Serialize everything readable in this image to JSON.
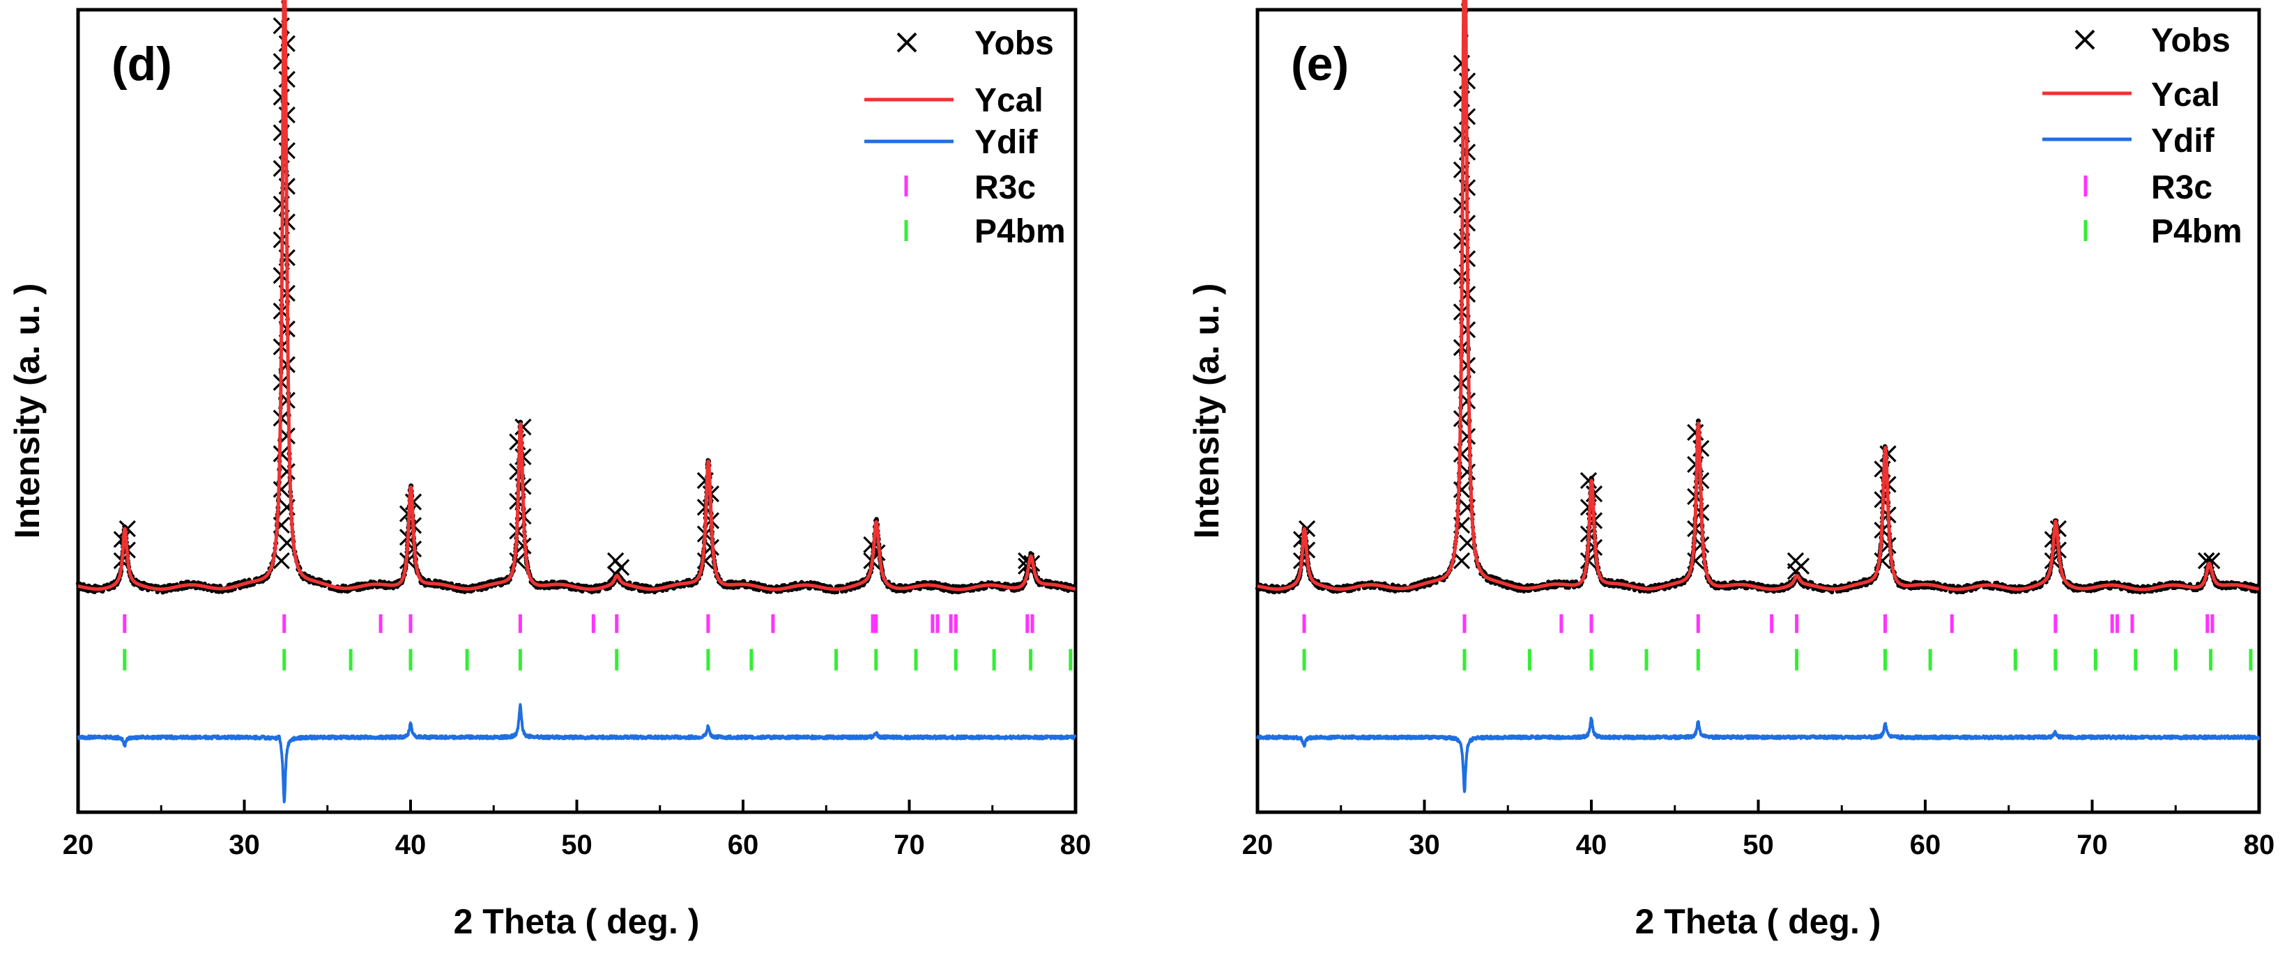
{
  "colors": {
    "yobs": "#000000",
    "ycal": "#ee3333",
    "ydif": "#1f6fe0",
    "r3c": "#ff33ff",
    "p4bm": "#33ee33"
  },
  "chart_data": [
    {
      "type": "line",
      "panel_label": "(d)",
      "xlabel": "2 Theta ( deg. )",
      "ylabel": "Intensity (a. u. )",
      "xlim": [
        20,
        80
      ],
      "ylim": [
        -0.4,
        1.1
      ],
      "xticks": [
        "20",
        "30",
        "40",
        "50",
        "60",
        "70",
        "80"
      ],
      "grid": false,
      "legend_position": "top-right",
      "legend": [
        "Yobs",
        "Ycal",
        "Ydif",
        "R3c",
        "P4bm"
      ],
      "baseline": 0.02,
      "peaks": [
        {
          "x": 22.8,
          "h": 0.09,
          "w": 0.14
        },
        {
          "x": 32.4,
          "h": 1.0,
          "w": 0.14
        },
        {
          "x": 40.0,
          "h": 0.16,
          "w": 0.16
        },
        {
          "x": 46.6,
          "h": 0.26,
          "w": 0.15
        },
        {
          "x": 52.4,
          "h": 0.015,
          "w": 0.18
        },
        {
          "x": 57.9,
          "h": 0.2,
          "w": 0.17
        },
        {
          "x": 68.0,
          "h": 0.1,
          "w": 0.18
        },
        {
          "x": 77.3,
          "h": 0.05,
          "w": 0.2
        }
      ],
      "obs_top": [
        {
          "x": 22.8,
          "y": 0.13
        },
        {
          "x": 32.4,
          "y": 1.07
        },
        {
          "x": 40.0,
          "y": 0.18
        },
        {
          "x": 46.6,
          "y": 0.32
        },
        {
          "x": 52.5,
          "y": 0.045
        },
        {
          "x": 57.9,
          "y": 0.22
        },
        {
          "x": 67.9,
          "y": 0.1
        },
        {
          "x": 77.2,
          "y": 0.06
        }
      ],
      "r3c_ticks": [
        22.8,
        32.4,
        38.2,
        40.0,
        46.6,
        51.0,
        52.4,
        57.9,
        61.8,
        67.8,
        68.0,
        71.4,
        71.7,
        72.5,
        72.8,
        77.1,
        77.4
      ],
      "p4bm_ticks": [
        22.8,
        32.4,
        36.4,
        40.0,
        43.4,
        46.6,
        52.4,
        57.9,
        60.5,
        65.6,
        68.0,
        70.4,
        72.8,
        75.1,
        77.3,
        79.7
      ],
      "ydif_spikes": [
        {
          "x": 22.8,
          "d": -0.015
        },
        {
          "x": 32.4,
          "d": -0.12
        },
        {
          "x": 32.1,
          "d": 0.01
        },
        {
          "x": 40.0,
          "d": 0.025
        },
        {
          "x": 46.6,
          "d": 0.06
        },
        {
          "x": 57.9,
          "d": 0.02
        },
        {
          "x": 68.0,
          "d": 0.008
        }
      ],
      "ydif_level": -0.26
    },
    {
      "type": "line",
      "panel_label": "(e)",
      "xlabel": "2 Theta ( deg. )",
      "ylabel": "Intensity (a. u. )",
      "xlim": [
        20,
        80
      ],
      "ylim": [
        -0.4,
        1.1
      ],
      "xticks": [
        "20",
        "30",
        "40",
        "50",
        "60",
        "70",
        "80"
      ],
      "grid": false,
      "legend_position": "top-right",
      "legend": [
        "Yobs",
        "Ycal",
        "Ydif",
        "R3c",
        "P4bm"
      ],
      "baseline": 0.02,
      "peaks": [
        {
          "x": 22.8,
          "h": 0.09,
          "w": 0.14
        },
        {
          "x": 32.4,
          "h": 1.08,
          "w": 0.14
        },
        {
          "x": 40.0,
          "h": 0.17,
          "w": 0.16
        },
        {
          "x": 46.4,
          "h": 0.26,
          "w": 0.15
        },
        {
          "x": 52.3,
          "h": 0.015,
          "w": 0.18
        },
        {
          "x": 57.6,
          "h": 0.22,
          "w": 0.17
        },
        {
          "x": 67.8,
          "h": 0.1,
          "w": 0.18
        },
        {
          "x": 77.0,
          "h": 0.04,
          "w": 0.2
        }
      ],
      "obs_top": [
        {
          "x": 22.8,
          "y": 0.13
        },
        {
          "x": 32.4,
          "y": 1.0
        },
        {
          "x": 40.0,
          "y": 0.22
        },
        {
          "x": 46.4,
          "y": 0.31
        },
        {
          "x": 52.4,
          "y": 0.05
        },
        {
          "x": 57.6,
          "y": 0.27
        },
        {
          "x": 67.8,
          "y": 0.13
        },
        {
          "x": 77.0,
          "y": 0.07
        }
      ],
      "r3c_ticks": [
        22.8,
        32.4,
        38.2,
        40.0,
        46.4,
        50.8,
        52.3,
        57.6,
        61.6,
        67.8,
        71.2,
        71.5,
        72.4,
        76.9,
        77.2
      ],
      "p4bm_ticks": [
        22.8,
        32.4,
        36.3,
        40.0,
        43.3,
        46.4,
        52.3,
        57.6,
        60.3,
        65.4,
        67.8,
        70.2,
        72.6,
        75.0,
        77.1,
        79.5
      ],
      "ydif_spikes": [
        {
          "x": 22.8,
          "d": -0.015
        },
        {
          "x": 32.4,
          "d": -0.1
        },
        {
          "x": 40.0,
          "d": 0.035
        },
        {
          "x": 46.4,
          "d": 0.03
        },
        {
          "x": 57.6,
          "d": 0.025
        },
        {
          "x": 67.8,
          "d": 0.01
        }
      ],
      "ydif_level": -0.26
    }
  ]
}
